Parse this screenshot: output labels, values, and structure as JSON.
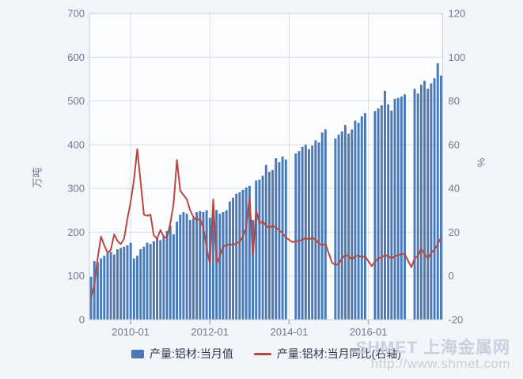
{
  "watermark": {
    "line1": "SHMET 上海金属网",
    "line2": "http://www.shmet.com"
  },
  "colors": {
    "page_bg": "#f2f5fa",
    "plot_bg": "#fcfdff",
    "grid": "#d8dde4",
    "border": "#c5ccd6",
    "axis_text": "#6f7b88",
    "tick": "#9fb0c4",
    "legend_text": "#2b3a49",
    "bar": "#4a79b8",
    "line": "#b9473f"
  },
  "chart_data": {
    "type": "bar+line",
    "title": "",
    "months": [
      "2009-01",
      "2009-02",
      "2009-03",
      "2009-04",
      "2009-05",
      "2009-06",
      "2009-07",
      "2009-08",
      "2009-09",
      "2009-10",
      "2009-11",
      "2009-12",
      "2010-01",
      "2010-02",
      "2010-03",
      "2010-04",
      "2010-05",
      "2010-06",
      "2010-07",
      "2010-08",
      "2010-09",
      "2010-10",
      "2010-11",
      "2010-12",
      "2011-01",
      "2011-02",
      "2011-03",
      "2011-04",
      "2011-05",
      "2011-06",
      "2011-07",
      "2011-08",
      "2011-09",
      "2011-10",
      "2011-11",
      "2011-12",
      "2012-01",
      "2012-02",
      "2012-03",
      "2012-04",
      "2012-05",
      "2012-06",
      "2012-07",
      "2012-08",
      "2012-09",
      "2012-10",
      "2012-11",
      "2012-12",
      "2013-01",
      "2013-02",
      "2013-03",
      "2013-04",
      "2013-05",
      "2013-06",
      "2013-07",
      "2013-08",
      "2013-09",
      "2013-10",
      "2013-11",
      "2013-12",
      "2014-01",
      "2014-02",
      "2014-03",
      "2014-04",
      "2014-05",
      "2014-06",
      "2014-07",
      "2014-08",
      "2014-09",
      "2014-10",
      "2014-11",
      "2014-12",
      "2015-01",
      "2015-02",
      "2015-03",
      "2015-04",
      "2015-05",
      "2015-06",
      "2015-07",
      "2015-08",
      "2015-09",
      "2015-10",
      "2015-11",
      "2015-12",
      "2016-01",
      "2016-02",
      "2016-03",
      "2016-04",
      "2016-05",
      "2016-06",
      "2016-07",
      "2016-08",
      "2016-09",
      "2016-10",
      "2016-11",
      "2016-12",
      "2017-01",
      "2017-02",
      "2017-03",
      "2017-04",
      "2017-05",
      "2017-06",
      "2017-07",
      "2017-08",
      "2017-09",
      "2017-10",
      "2017-11"
    ],
    "series": [
      {
        "name": "产量:铝材:当月值",
        "type": "bar",
        "axis": "left",
        "values": [
          98,
          134,
          131,
          140,
          146,
          152,
          155,
          149,
          161,
          164,
          167,
          170,
          176,
          140,
          146,
          161,
          167,
          176,
          173,
          179,
          188,
          182,
          191,
          203,
          215,
          195,
          224,
          240,
          246,
          242,
          228,
          232,
          246,
          248,
          246,
          250,
          233,
          238,
          251,
          242,
          246,
          250,
          270,
          279,
          288,
          291,
          297,
          302,
          306,
          228,
          318,
          320,
          329,
          354,
          338,
          342,
          369,
          360,
          373,
          366,
          null,
          null,
          380,
          385,
          395,
          400,
          390,
          398,
          410,
          405,
          428,
          435,
          null,
          null,
          414,
          423,
          430,
          445,
          425,
          435,
          455,
          450,
          465,
          472,
          null,
          null,
          477,
          483,
          490,
          523,
          492,
          478,
          505,
          507,
          510,
          515,
          null,
          null,
          528,
          517,
          537,
          546,
          528,
          540,
          552,
          586,
          558
        ]
      },
      {
        "name": "产量:铝材:当月同比(右轴)",
        "type": "line",
        "axis": "right",
        "values": [
          -10,
          -4,
          8,
          18,
          14,
          10.5,
          12,
          19,
          16,
          14.5,
          17,
          26,
          34,
          44,
          58,
          43,
          28,
          27.5,
          28,
          18.5,
          17,
          21,
          18,
          17.5,
          24,
          33,
          53,
          39,
          37,
          35,
          30,
          27,
          25.5,
          26,
          22,
          13,
          5.5,
          35,
          5.5,
          9,
          13.5,
          14,
          14.5,
          14,
          15,
          15.5,
          18,
          22,
          36,
          9,
          30,
          24,
          25,
          23,
          22,
          23,
          22,
          21,
          19.5,
          17.5,
          null,
          15.5,
          15.8,
          16,
          16.5,
          17.5,
          16.5,
          17.5,
          16.5,
          15,
          14,
          14.5,
          null,
          6,
          5,
          5.5,
          8,
          9.5,
          9,
          7.5,
          9,
          9.3,
          8.5,
          9,
          null,
          4.5,
          6.5,
          8,
          8.5,
          9.5,
          9,
          8,
          9,
          9.5,
          10,
          10,
          null,
          4,
          8,
          9,
          12.5,
          10,
          8,
          10.5,
          12,
          14.5,
          17.6
        ]
      }
    ],
    "left_axis": {
      "title": "万吨",
      "min": 0,
      "max": 700,
      "step": 100,
      "labels": [
        "0",
        "100",
        "200",
        "300",
        "400",
        "500",
        "600",
        "700"
      ]
    },
    "right_axis": {
      "title": "%",
      "min": -20,
      "max": 120,
      "step": 20,
      "labels": [
        "-20",
        "0",
        "20",
        "40",
        "60",
        "80",
        "100",
        "120"
      ]
    },
    "x_axis": {
      "tick_labels": [
        "2010-01",
        "2012-01",
        "2014-01",
        "2016-01"
      ]
    },
    "legend_position": "bottom",
    "grid": true
  }
}
